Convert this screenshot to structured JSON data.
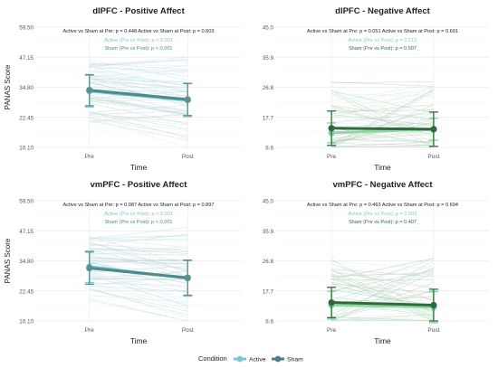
{
  "colors": {
    "active_line": "#6bbfcf",
    "active_marker": "#7fc6d4",
    "sham_line": "#4f8a8b",
    "sham_marker": "#5e8f92",
    "neg_active_marker": "#7ed39a",
    "neg_sham_line": "#2f6b3a",
    "grid": "#ebebeb",
    "text": "#222222"
  },
  "legend": {
    "title": "Condition",
    "items": [
      {
        "label": "Active",
        "color": "#7fc6d4"
      },
      {
        "label": "Sham",
        "color": "#4f7f85"
      }
    ]
  },
  "chart_data": [
    {
      "type": "line",
      "title": "dlPFC - Positive Affect",
      "xlabel": "Time",
      "ylabel": "PANAS Score",
      "categories": [
        "Pre",
        "Post"
      ],
      "yticks": [
        "10.10",
        "22.45",
        "34.80",
        "47.15",
        "59.50"
      ],
      "ylim": [
        10.1,
        59.5
      ],
      "grid": true,
      "annotation_top": "Active vs Sham at Pre: p = 0.448          Active vs Sham at Post: p = 0.603",
      "annotation_active": "Active (Pre vs Post): p < 0.001",
      "annotation_sham": "Sham (Pre vs Post): p < 0.001",
      "annotation_active_color": "#7fc6d4",
      "annotation_sham_color": "#4f8a8b",
      "line_color_active": "#6bbfcf",
      "line_color_sham": "#4f8a8b",
      "marker_color_active": "#7fc6d4",
      "marker_color_sham": "#5e8f92",
      "series": [
        {
          "name": "Active",
          "values": [
            33.2,
            29.5
          ],
          "err": [
            6.5,
            6.8
          ]
        },
        {
          "name": "Sham",
          "values": [
            33.6,
            29.8
          ],
          "err": [
            6.4,
            6.6
          ]
        }
      ]
    },
    {
      "type": "line",
      "title": "dlPFC - Negative Affect",
      "xlabel": "Time",
      "ylabel": "",
      "categories": [
        "Pre",
        "Post"
      ],
      "yticks": [
        "8.6",
        "17.7",
        "26.8",
        "35.9",
        "45.0"
      ],
      "ylim": [
        8.6,
        45.0
      ],
      "grid": true,
      "annotation_top": "Active vs Sham at Pre: p = 0.051          Active vs Sham at Post: p = 0.691",
      "annotation_active": "Active (Pre vs Post): p = 0.212",
      "annotation_sham": "Sham (Pre vs Post): p = 0.507",
      "annotation_active_color": "#7ed39a",
      "annotation_sham_color": "#2f6b3a",
      "line_color_active": "#8fd7a6",
      "line_color_sham": "#2f6b3a",
      "marker_color_active": "#7ed39a",
      "marker_color_sham": "#2f6b3a",
      "series": [
        {
          "name": "Active",
          "values": [
            13.0,
            14.1
          ],
          "err": [
            3.0,
            3.3
          ]
        },
        {
          "name": "Sham",
          "values": [
            14.4,
            14.1
          ],
          "err": [
            5.2,
            5.2
          ]
        }
      ]
    },
    {
      "type": "line",
      "title": "vmPFC - Positive Affect",
      "xlabel": "Time",
      "ylabel": "PANAS Score",
      "categories": [
        "Pre",
        "Post"
      ],
      "yticks": [
        "10.10",
        "22.45",
        "34.80",
        "47.15",
        "59.50"
      ],
      "ylim": [
        10.1,
        59.5
      ],
      "grid": true,
      "annotation_top": "Active vs Sham at Pre: p = 0.087          Active vs Sham at Post: p = 0.897",
      "annotation_active": "Active (Pre vs Post): p < 0.001",
      "annotation_sham": "Sham (Pre vs Post): p < 0.001",
      "annotation_active_color": "#7fc6d4",
      "annotation_sham_color": "#4f8a8b",
      "line_color_active": "#6bbfcf",
      "line_color_sham": "#4f8a8b",
      "marker_color_active": "#7fc6d4",
      "marker_color_sham": "#5e8f92",
      "series": [
        {
          "name": "Active",
          "values": [
            32.4,
            27.6
          ],
          "err": [
            6.5,
            7.3
          ]
        },
        {
          "name": "Sham",
          "values": [
            31.8,
            27.9
          ],
          "err": [
            6.6,
            7.2
          ]
        }
      ]
    },
    {
      "type": "line",
      "title": "vmPFC - Negative Affect",
      "xlabel": "Time",
      "ylabel": "",
      "categories": [
        "Pre",
        "Post"
      ],
      "yticks": [
        "8.6",
        "17.7",
        "26.8",
        "35.9",
        "45.0"
      ],
      "ylim": [
        8.6,
        45.0
      ],
      "grid": true,
      "annotation_top": "Active vs Sham at Pre: p = 0.463          Active vs Sham at Post: p = 0.694",
      "annotation_active": "Active (Pre vs Post): p = 0.003",
      "annotation_sham": "Sham (Pre vs Post): p = 0.407",
      "annotation_active_color": "#7ed39a",
      "annotation_sham_color": "#2f6b3a",
      "line_color_active": "#8fd7a6",
      "line_color_sham": "#2f6b3a",
      "marker_color_active": "#7ed39a",
      "marker_color_sham": "#2f6b3a",
      "series": [
        {
          "name": "Active",
          "values": [
            13.4,
            12.8
          ],
          "err": [
            4.2,
            4.7
          ]
        },
        {
          "name": "Sham",
          "values": [
            14.2,
            13.4
          ],
          "err": [
            4.6,
            4.8
          ]
        }
      ]
    }
  ]
}
